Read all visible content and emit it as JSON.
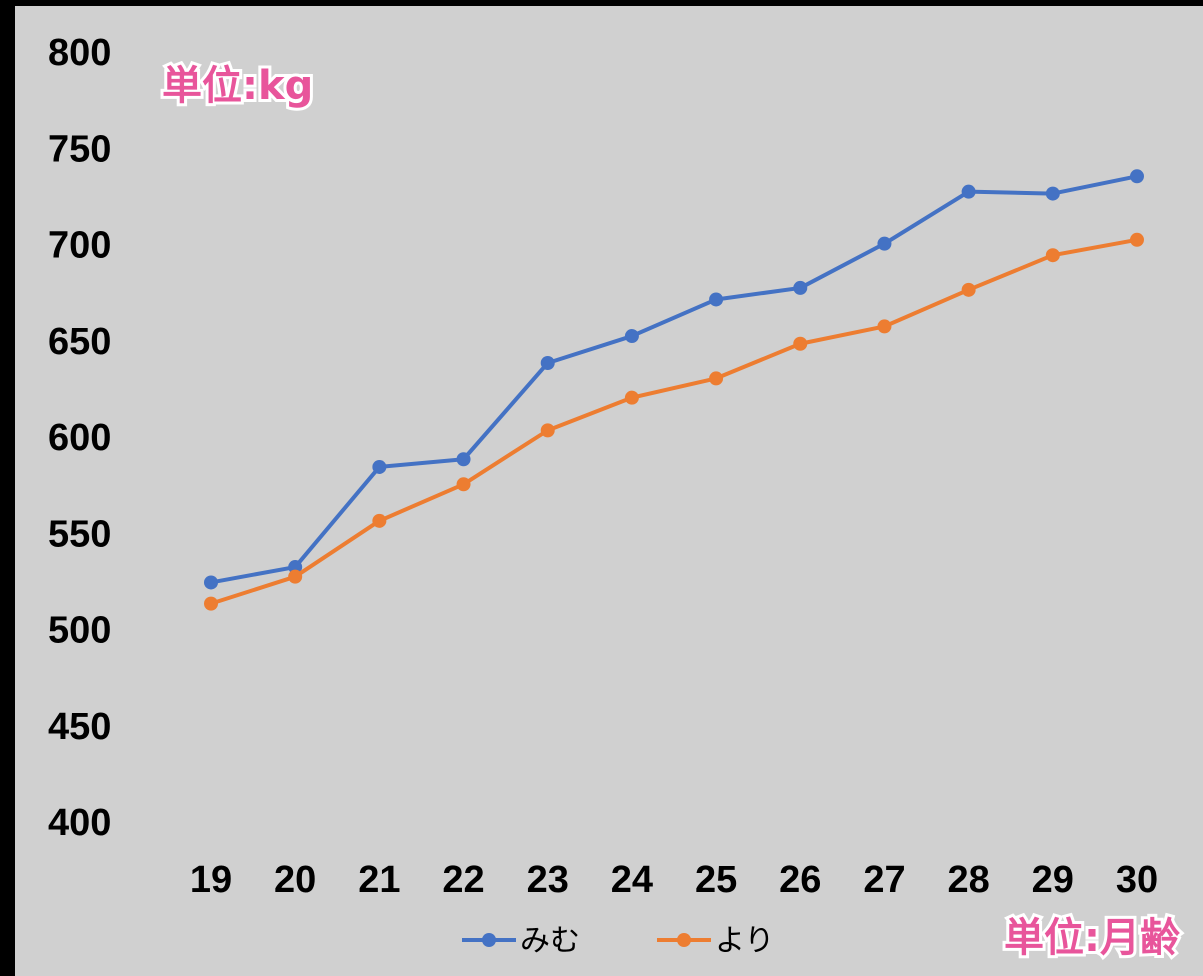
{
  "chart_data": {
    "type": "line",
    "annotations": [
      "単位:kg",
      "単位:月齢"
    ],
    "categories": [
      "19",
      "20",
      "21",
      "22",
      "23",
      "24",
      "25",
      "26",
      "27",
      "28",
      "29",
      "30"
    ],
    "series": [
      {
        "name": "みむ",
        "color": "#4472c4",
        "values": [
          526,
          534,
          586,
          590,
          640,
          654,
          673,
          679,
          702,
          729,
          728,
          737
        ]
      },
      {
        "name": "より",
        "color": "#ed7d31",
        "values": [
          515,
          529,
          558,
          577,
          605,
          622,
          632,
          650,
          659,
          678,
          696,
          704
        ]
      }
    ],
    "ylim": [
      400,
      800
    ],
    "yticks": [
      400,
      450,
      500,
      550,
      600,
      650,
      700,
      750,
      800
    ],
    "grid": false,
    "legend": "bottom"
  }
}
